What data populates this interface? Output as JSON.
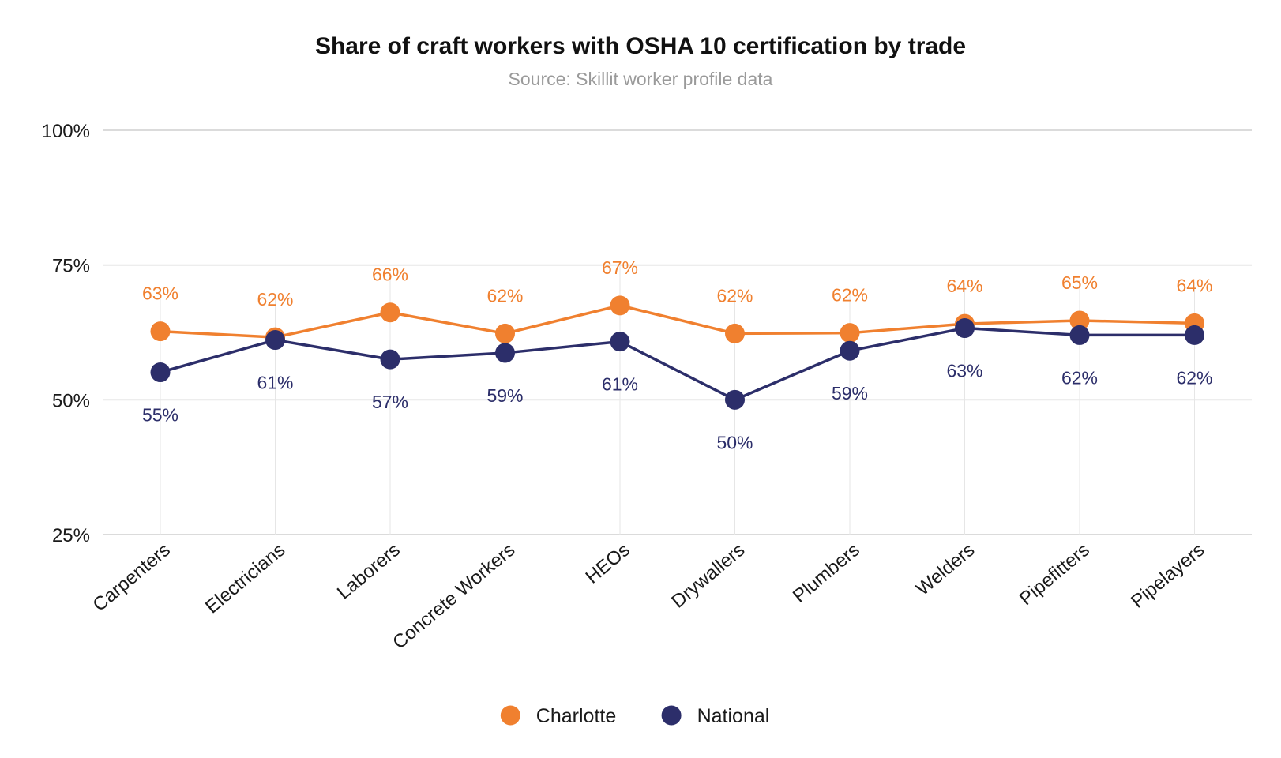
{
  "chart_data": {
    "type": "line",
    "title": "Share of craft workers with OSHA 10 certification by trade",
    "subtitle": "Source: Skillit worker profile data",
    "xlabel": "",
    "ylabel": "",
    "ylim": [
      25,
      100
    ],
    "yticks": [
      25,
      50,
      75,
      100
    ],
    "ytick_labels": [
      "25%",
      "50%",
      "75%",
      "100%"
    ],
    "grid": true,
    "legend_position": "bottom-center",
    "categories": [
      "Carpenters",
      "Electricians",
      "Laborers",
      "Concrete Workers",
      "HEOs",
      "Drywallers",
      "Plumbers",
      "Welders",
      "Pipefitters",
      "Pipelayers"
    ],
    "series": [
      {
        "name": "Charlotte",
        "color": "#f0802f",
        "values": [
          62.7,
          61.6,
          66.2,
          62.3,
          67.5,
          62.3,
          62.4,
          64.1,
          64.7,
          64.2
        ],
        "labels": [
          "63%",
          "62%",
          "66%",
          "62%",
          "67%",
          "62%",
          "62%",
          "64%",
          "65%",
          "64%"
        ],
        "label_position": "above"
      },
      {
        "name": "National",
        "color": "#2c2e6a",
        "values": [
          55.1,
          61.1,
          57.5,
          58.7,
          60.8,
          50.0,
          59.1,
          63.3,
          62.0,
          62.0
        ],
        "labels": [
          "55%",
          "61%",
          "57%",
          "59%",
          "61%",
          "50%",
          "59%",
          "63%",
          "62%",
          "62%"
        ],
        "label_position": "below"
      }
    ]
  }
}
